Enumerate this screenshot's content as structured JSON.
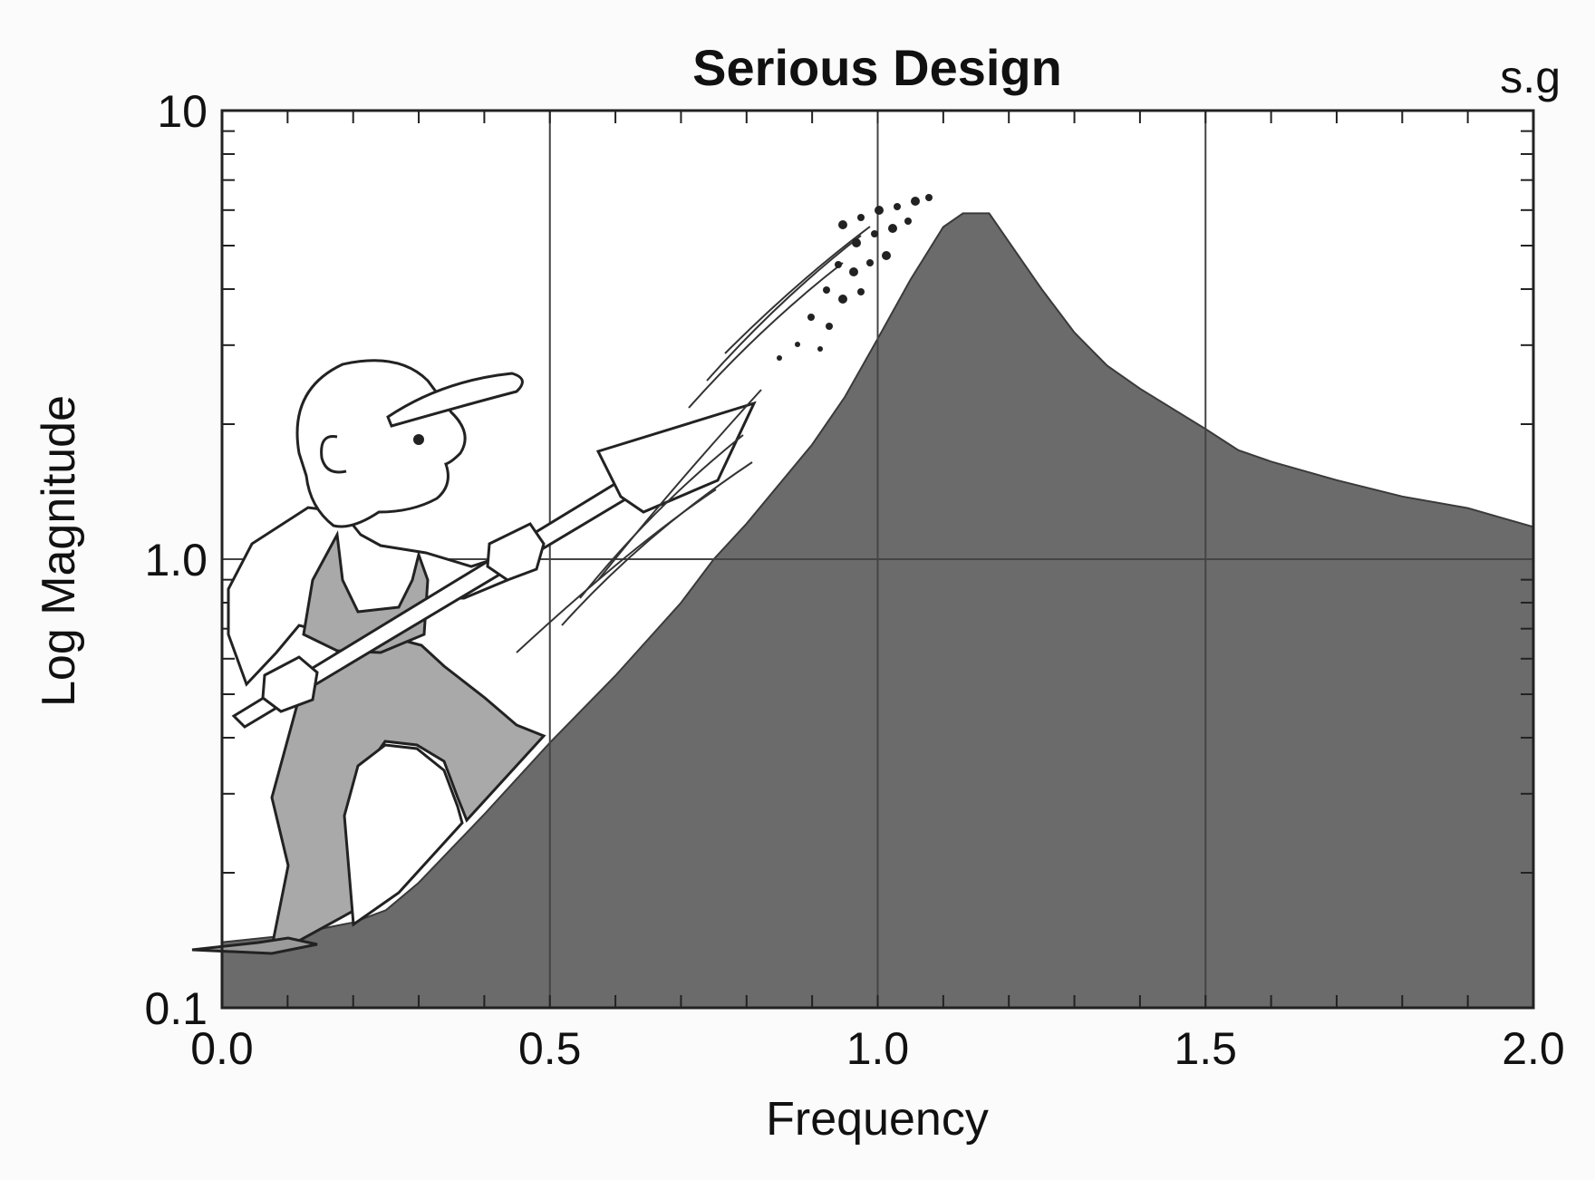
{
  "chart_data": {
    "type": "area",
    "title": "Serious Design",
    "corner_label": "s.g",
    "xlabel": "Frequency",
    "ylabel": "Log Magnitude",
    "xlim": [
      0.0,
      2.0
    ],
    "ylim": [
      0.1,
      10
    ],
    "y_scale": "log",
    "grid": true,
    "x_ticks": [
      {
        "value": 0.0,
        "label": "0.0"
      },
      {
        "value": 0.5,
        "label": "0.5"
      },
      {
        "value": 1.0,
        "label": "1.0"
      },
      {
        "value": 1.5,
        "label": "1.5"
      },
      {
        "value": 2.0,
        "label": "2.0"
      }
    ],
    "y_ticks": [
      {
        "value": 0.1,
        "label": "0.1"
      },
      {
        "value": 1.0,
        "label": "1.0"
      },
      {
        "value": 10,
        "label": "10"
      }
    ],
    "series": [
      {
        "x": [
          0.0,
          0.1,
          0.2,
          0.25,
          0.3,
          0.4,
          0.5,
          0.6,
          0.7,
          0.75,
          0.8,
          0.9,
          0.95,
          1.0,
          1.05,
          1.1,
          1.13,
          1.17,
          1.2,
          1.25,
          1.3,
          1.35,
          1.4,
          1.5,
          1.55,
          1.6,
          1.7,
          1.8,
          1.9,
          2.0
        ],
        "values": [
          0.14,
          0.145,
          0.155,
          0.165,
          0.19,
          0.27,
          0.39,
          0.55,
          0.8,
          1.0,
          1.2,
          1.8,
          2.3,
          3.1,
          4.2,
          5.5,
          5.9,
          5.9,
          5.1,
          4.0,
          3.2,
          2.7,
          2.4,
          1.95,
          1.75,
          1.65,
          1.5,
          1.38,
          1.3,
          1.18
        ]
      }
    ],
    "area_color": "#6b6b6b",
    "grid_color": "#444444"
  }
}
